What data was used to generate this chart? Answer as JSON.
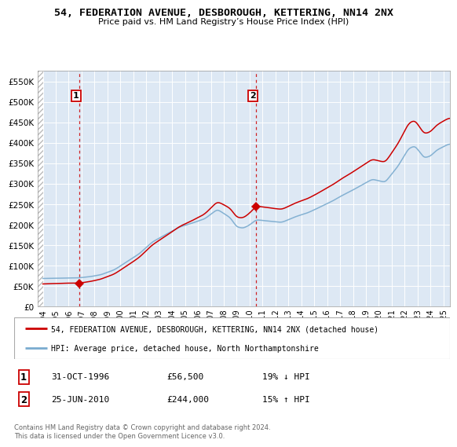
{
  "title": "54, FEDERATION AVENUE, DESBOROUGH, KETTERING, NN14 2NX",
  "subtitle": "Price paid vs. HM Land Registry’s House Price Index (HPI)",
  "ylim": [
    0,
    575000
  ],
  "yticks": [
    0,
    50000,
    100000,
    150000,
    200000,
    250000,
    300000,
    350000,
    400000,
    450000,
    500000,
    550000
  ],
  "ytick_labels": [
    "£0",
    "£50K",
    "£100K",
    "£150K",
    "£200K",
    "£250K",
    "£300K",
    "£350K",
    "£400K",
    "£450K",
    "£500K",
    "£550K"
  ],
  "xlim_start": 1993.6,
  "xlim_end": 2025.5,
  "bg_color": "#dde8f4",
  "grid_color": "#ffffff",
  "sale1_x": 1996.83,
  "sale1_y": 56500,
  "sale2_x": 2010.48,
  "sale2_y": 244000,
  "legend_line1": "54, FEDERATION AVENUE, DESBOROUGH, KETTERING, NN14 2NX (detached house)",
  "legend_line2": "HPI: Average price, detached house, North Northamptonshire",
  "sale1_date": "31-OCT-1996",
  "sale1_price": "£56,500",
  "sale1_hpi": "19% ↓ HPI",
  "sale2_date": "25-JUN-2010",
  "sale2_price": "£244,000",
  "sale2_hpi": "15% ↑ HPI",
  "footer": "Contains HM Land Registry data © Crown copyright and database right 2024.\nThis data is licensed under the Open Government Licence v3.0.",
  "red_color": "#cc0000",
  "blue_color": "#7aabcf"
}
